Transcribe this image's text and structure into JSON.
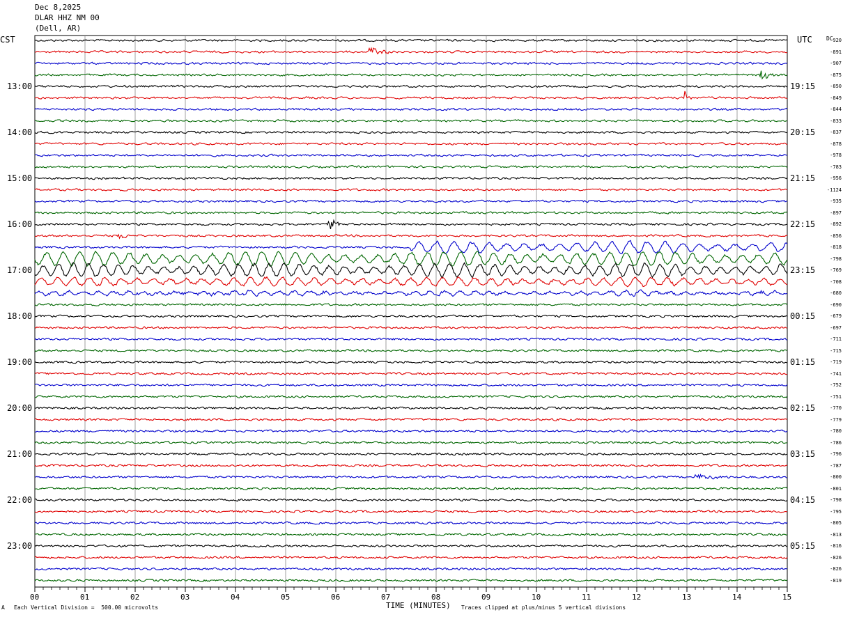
{
  "header": {
    "date": "Dec 8,2025",
    "station": "DLAR HHZ NM 00",
    "location": "(Dell, AR)"
  },
  "left_axis_title": "CST",
  "right_axis_title": "UTC",
  "dc_title": "DC",
  "footer": {
    "scale_mark": "A",
    "scale_text": "Each Vertical Division =  500.00 microvolts",
    "clip_text": "Traces clipped at plus/minus 5 vertical divisions"
  },
  "chart_data": {
    "type": "line",
    "title": "DLAR HHZ NM 00",
    "xlabel": "TIME (MINUTES)",
    "x_range": [
      0,
      15
    ],
    "x_ticks": [
      "00",
      "01",
      "02",
      "03",
      "04",
      "05",
      "06",
      "07",
      "08",
      "09",
      "10",
      "11",
      "12",
      "13",
      "14",
      "15"
    ],
    "trace_minutes": 15,
    "trace_count": 48,
    "trace_colors": [
      "#000000",
      "#e00000",
      "#0000cc",
      "#006600"
    ],
    "left_hour_labels": [
      "13:00",
      "14:00",
      "15:00",
      "16:00",
      "17:00",
      "18:00",
      "19:00",
      "20:00",
      "21:00",
      "22:00",
      "23:00"
    ],
    "right_hour_labels": [
      "19:15",
      "20:15",
      "21:15",
      "22:15",
      "23:15",
      "00:15",
      "01:15",
      "02:15",
      "03:15",
      "04:15",
      "05:15"
    ],
    "dc_offsets": [
      -920,
      -891,
      -907,
      -875,
      -850,
      -849,
      -844,
      -833,
      -837,
      -878,
      -978,
      -783,
      -956,
      -1124,
      -935,
      -897,
      -892,
      -856,
      -818,
      -798,
      -769,
      -708,
      -680,
      -690,
      -679,
      -697,
      -711,
      -715,
      -719,
      -741,
      -752,
      -751,
      -770,
      -779,
      -780,
      -786,
      -796,
      -787,
      -800,
      -801,
      -798,
      -795,
      -805,
      -813,
      -816,
      -826,
      -826,
      -819
    ],
    "events": [
      {
        "trace": 1,
        "minute": 6.7,
        "amp": 7,
        "dur": 0.5
      },
      {
        "trace": 3,
        "minute": 14.5,
        "amp": 8,
        "dur": 0.4
      },
      {
        "trace": 5,
        "minute": 13.0,
        "amp": 9,
        "dur": 0.1
      },
      {
        "trace": 16,
        "minute": 5.9,
        "amp": 7,
        "dur": 0.3
      },
      {
        "trace": 17,
        "minute": 1.7,
        "amp": 5,
        "dur": 0.4
      },
      {
        "trace": 38,
        "minute": 13.2,
        "amp": 5,
        "dur": 0.7
      }
    ],
    "teleseism": [
      {
        "trace": 18,
        "amp": 8,
        "period_min": 0.35,
        "start": 7.5
      },
      {
        "trace": 19,
        "amp": 10,
        "period_min": 0.33,
        "start": 0
      },
      {
        "trace": 20,
        "amp": 9,
        "period_min": 0.3,
        "start": 0
      },
      {
        "trace": 21,
        "amp": 6,
        "period_min": 0.32,
        "start": 0
      },
      {
        "trace": 22,
        "amp": 3,
        "period_min": 0.3,
        "start": 0
      }
    ]
  }
}
